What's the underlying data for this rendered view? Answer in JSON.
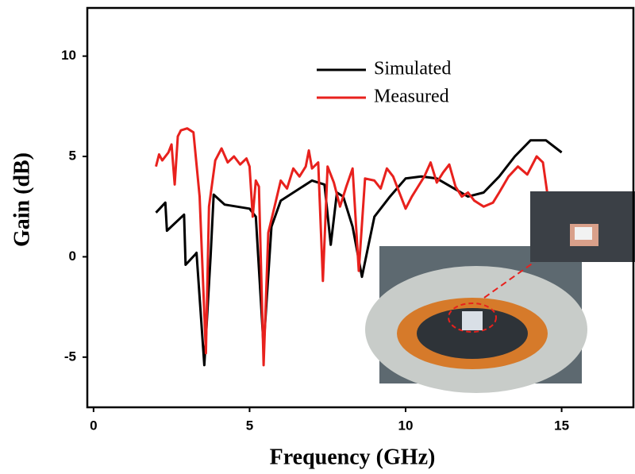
{
  "chart_data": {
    "type": "line",
    "xlabel": "Frequency (GHz)",
    "ylabel": "Gain (dB)",
    "xlim": [
      -0.2,
      17.3
    ],
    "ylim": [
      -7.5,
      12.4
    ],
    "xticks": [
      0,
      5,
      10,
      15
    ],
    "yticks": [
      -5,
      0,
      5,
      10
    ],
    "legend": "upper center",
    "series": [
      {
        "name": "Simulated",
        "color": "#000000",
        "x": [
          2,
          2.3,
          2.35,
          2.9,
          2.95,
          3.25,
          3.3,
          3.55,
          3.75,
          3.85,
          4.2,
          5,
          5.2,
          5.45,
          5.7,
          6,
          7,
          7.4,
          7.6,
          7.8,
          8,
          8.3,
          8.6,
          8.8,
          9,
          9.5,
          10,
          10.5,
          11,
          12,
          12.5,
          13,
          13.5,
          14,
          14.5,
          15
        ],
        "values": [
          2.2,
          2.7,
          1.3,
          2.1,
          -0.4,
          0.1,
          0.2,
          -5.4,
          0,
          3.1,
          2.6,
          2.4,
          2.0,
          -4.5,
          1.5,
          2.8,
          3.8,
          3.6,
          0.6,
          3.2,
          3.0,
          1.5,
          -1.0,
          0.5,
          2.0,
          3.0,
          3.9,
          4.0,
          3.9,
          3.0,
          3.2,
          4.0,
          5.0,
          5.8,
          5.8,
          5.2
        ]
      },
      {
        "name": "Measured",
        "color": "#e8211d",
        "x": [
          2,
          2.1,
          2.2,
          2.4,
          2.5,
          2.6,
          2.7,
          2.8,
          3,
          3.2,
          3.4,
          3.6,
          3.7,
          3.9,
          4.1,
          4.3,
          4.5,
          4.7,
          4.9,
          5.0,
          5.1,
          5.2,
          5.3,
          5.45,
          5.6,
          5.8,
          6,
          6.2,
          6.4,
          6.6,
          6.8,
          6.9,
          7.0,
          7.2,
          7.35,
          7.5,
          7.7,
          7.9,
          8.1,
          8.3,
          8.5,
          8.7,
          9,
          9.2,
          9.4,
          9.6,
          9.8,
          10,
          10.2,
          10.4,
          10.6,
          10.8,
          11,
          11.2,
          11.4,
          11.6,
          11.8,
          12,
          12.2,
          12.5,
          12.8,
          13,
          13.3,
          13.6,
          13.9,
          14.2,
          14.4,
          14.6
        ],
        "values": [
          4.5,
          5.1,
          4.8,
          5.2,
          5.6,
          3.6,
          6.0,
          6.3,
          6.4,
          6.2,
          3.0,
          -4.8,
          2.5,
          4.8,
          5.4,
          4.7,
          5.0,
          4.6,
          4.9,
          4.5,
          2.0,
          3.8,
          3.5,
          -5.4,
          1.2,
          2.5,
          3.8,
          3.4,
          4.4,
          4.0,
          4.5,
          5.3,
          4.4,
          4.7,
          -1.2,
          4.5,
          3.7,
          2.5,
          3.5,
          4.4,
          -0.7,
          3.9,
          3.8,
          3.4,
          4.4,
          4.0,
          3.2,
          2.4,
          3.0,
          3.5,
          4.0,
          4.7,
          3.7,
          4.2,
          4.6,
          3.5,
          3.0,
          3.2,
          2.8,
          2.5,
          2.7,
          3.2,
          4.0,
          4.5,
          4.1,
          5.0,
          4.7,
          2.5
        ]
      }
    ]
  }
}
